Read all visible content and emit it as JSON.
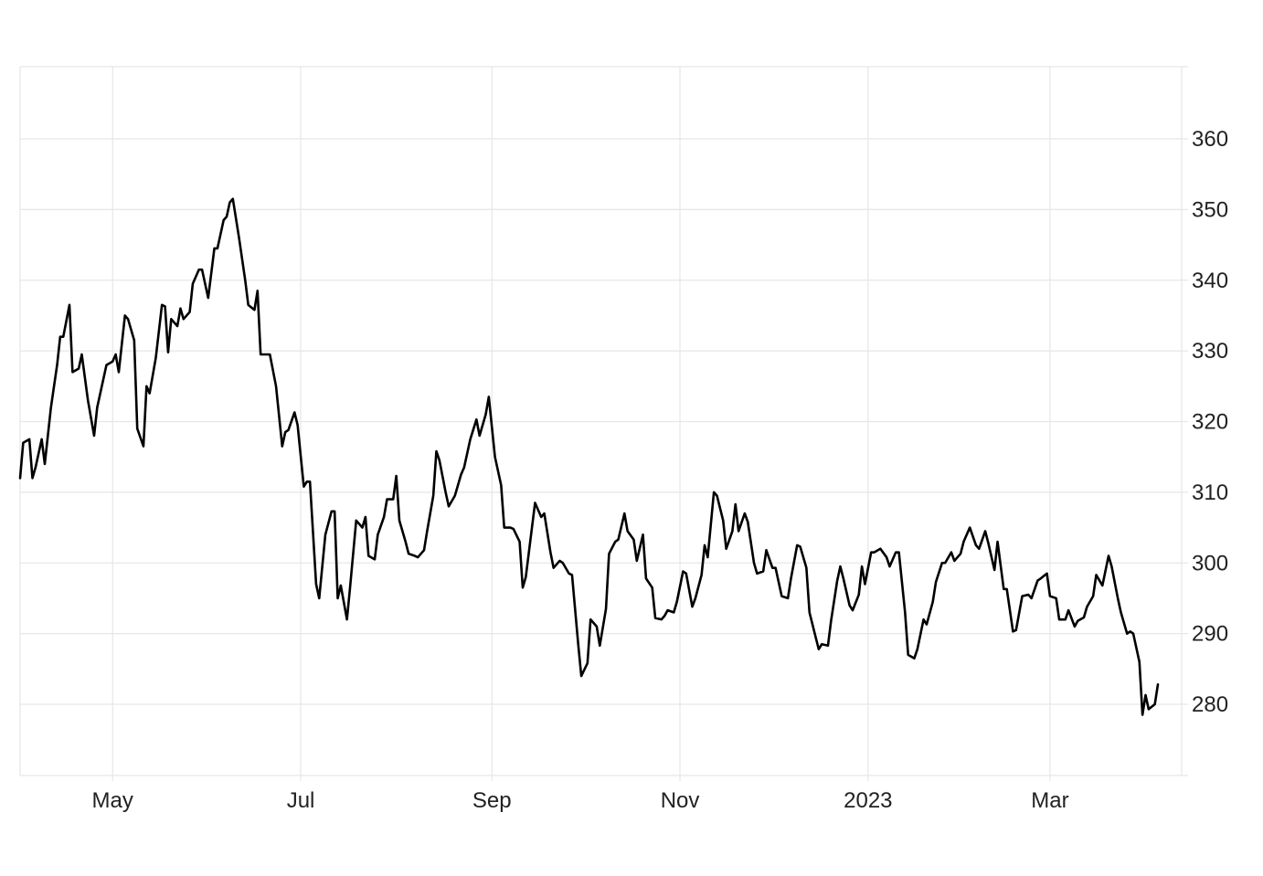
{
  "chart_data": {
    "type": "line",
    "title": "",
    "xlabel": "",
    "ylabel": "",
    "x_ticks": [
      {
        "label": "May",
        "date": "2022-05-01"
      },
      {
        "label": "Jul",
        "date": "2022-07-01"
      },
      {
        "label": "Sep",
        "date": "2022-09-01"
      },
      {
        "label": "Nov",
        "date": "2022-11-01"
      },
      {
        "label": "2023",
        "date": "2023-01-01"
      },
      {
        "label": "Mar",
        "date": "2023-03-01"
      }
    ],
    "y_ticks": [
      280,
      290,
      300,
      310,
      320,
      330,
      340,
      350,
      360
    ],
    "ylim": [
      270,
      370
    ],
    "xlim": [
      "2022-04-01",
      "2023-04-05"
    ],
    "y_axis_side": "right",
    "grid": true,
    "line_color": "#000000",
    "grid_color": "#e6e6e6",
    "series": [
      {
        "values": [
          [
            "2022-04-01",
            312
          ],
          [
            "2022-04-02",
            317
          ],
          [
            "2022-04-04",
            317.5
          ],
          [
            "2022-04-05",
            312
          ],
          [
            "2022-04-06",
            313.5
          ],
          [
            "2022-04-08",
            317.5
          ],
          [
            "2022-04-09",
            314
          ],
          [
            "2022-04-11",
            322
          ],
          [
            "2022-04-13",
            328
          ],
          [
            "2022-04-14",
            332
          ],
          [
            "2022-04-15",
            332
          ],
          [
            "2022-04-17",
            336.5
          ],
          [
            "2022-04-18",
            327
          ],
          [
            "2022-04-20",
            327.5
          ],
          [
            "2022-04-21",
            329.5
          ],
          [
            "2022-04-23",
            323
          ],
          [
            "2022-04-25",
            318
          ],
          [
            "2022-04-26",
            322
          ],
          [
            "2022-04-28",
            326
          ],
          [
            "2022-04-29",
            328
          ],
          [
            "2022-05-01",
            328.5
          ],
          [
            "2022-05-02",
            329.5
          ],
          [
            "2022-05-03",
            327
          ],
          [
            "2022-05-05",
            335
          ],
          [
            "2022-05-06",
            334.5
          ],
          [
            "2022-05-08",
            331.5
          ],
          [
            "2022-05-09",
            319
          ],
          [
            "2022-05-11",
            316.5
          ],
          [
            "2022-05-12",
            325
          ],
          [
            "2022-05-13",
            324
          ],
          [
            "2022-05-15",
            329
          ],
          [
            "2022-05-17",
            336.5
          ],
          [
            "2022-05-18",
            336.3
          ],
          [
            "2022-05-19",
            329.8
          ],
          [
            "2022-05-20",
            334.5
          ],
          [
            "2022-05-22",
            333.5
          ],
          [
            "2022-05-23",
            336
          ],
          [
            "2022-05-24",
            334.5
          ],
          [
            "2022-05-26",
            335.5
          ],
          [
            "2022-05-27",
            339.5
          ],
          [
            "2022-05-29",
            341.5
          ],
          [
            "2022-05-30",
            341.5
          ],
          [
            "2022-06-01",
            337.5
          ],
          [
            "2022-06-02",
            341
          ],
          [
            "2022-06-03",
            344.5
          ],
          [
            "2022-06-04",
            344.5
          ],
          [
            "2022-06-06",
            348.5
          ],
          [
            "2022-06-07",
            349
          ],
          [
            "2022-06-08",
            351
          ],
          [
            "2022-06-09",
            351.5
          ],
          [
            "2022-06-11",
            346
          ],
          [
            "2022-06-13",
            340
          ],
          [
            "2022-06-14",
            336.5
          ],
          [
            "2022-06-16",
            335.8
          ],
          [
            "2022-06-17",
            338.5
          ],
          [
            "2022-06-18",
            329.5
          ],
          [
            "2022-06-20",
            329.5
          ],
          [
            "2022-06-21",
            329.5
          ],
          [
            "2022-06-23",
            325
          ],
          [
            "2022-06-25",
            316.5
          ],
          [
            "2022-06-26",
            318.5
          ],
          [
            "2022-06-27",
            318.8
          ],
          [
            "2022-06-29",
            321.3
          ],
          [
            "2022-06-30",
            319.5
          ],
          [
            "2022-07-02",
            310.8
          ],
          [
            "2022-07-03",
            311.5
          ],
          [
            "2022-07-04",
            311.5
          ],
          [
            "2022-07-06",
            297
          ],
          [
            "2022-07-07",
            295
          ],
          [
            "2022-07-09",
            304
          ],
          [
            "2022-07-11",
            307.3
          ],
          [
            "2022-07-12",
            307.3
          ],
          [
            "2022-07-13",
            295
          ],
          [
            "2022-07-14",
            296.8
          ],
          [
            "2022-07-16",
            292
          ],
          [
            "2022-07-17",
            296.5
          ],
          [
            "2022-07-19",
            306
          ],
          [
            "2022-07-21",
            305
          ],
          [
            "2022-07-22",
            306.5
          ],
          [
            "2022-07-23",
            301
          ],
          [
            "2022-07-25",
            300.5
          ],
          [
            "2022-07-26",
            304
          ],
          [
            "2022-07-28",
            306.5
          ],
          [
            "2022-07-29",
            309
          ],
          [
            "2022-07-31",
            309
          ],
          [
            "2022-08-01",
            312.3
          ],
          [
            "2022-08-02",
            306
          ],
          [
            "2022-08-04",
            303
          ],
          [
            "2022-08-05",
            301.3
          ],
          [
            "2022-08-07",
            301
          ],
          [
            "2022-08-08",
            300.8
          ],
          [
            "2022-08-10",
            301.8
          ],
          [
            "2022-08-11",
            304.5
          ],
          [
            "2022-08-13",
            309.5
          ],
          [
            "2022-08-14",
            315.8
          ],
          [
            "2022-08-15",
            314.5
          ],
          [
            "2022-08-17",
            310
          ],
          [
            "2022-08-18",
            308
          ],
          [
            "2022-08-20",
            309.5
          ],
          [
            "2022-08-21",
            311
          ],
          [
            "2022-08-22",
            312.5
          ],
          [
            "2022-08-23",
            313.5
          ],
          [
            "2022-08-25",
            317.5
          ],
          [
            "2022-08-27",
            320.3
          ],
          [
            "2022-08-28",
            318
          ],
          [
            "2022-08-30",
            321
          ],
          [
            "2022-08-31",
            323.5
          ],
          [
            "2022-09-02",
            315
          ],
          [
            "2022-09-04",
            311
          ],
          [
            "2022-09-05",
            305
          ],
          [
            "2022-09-07",
            305
          ],
          [
            "2022-09-08",
            304.8
          ],
          [
            "2022-09-10",
            303
          ],
          [
            "2022-09-11",
            296.5
          ],
          [
            "2022-09-12",
            298
          ],
          [
            "2022-09-14",
            305
          ],
          [
            "2022-09-15",
            308.5
          ],
          [
            "2022-09-17",
            306.5
          ],
          [
            "2022-09-18",
            307
          ],
          [
            "2022-09-20",
            301.5
          ],
          [
            "2022-09-21",
            299.3
          ],
          [
            "2022-09-23",
            300.3
          ],
          [
            "2022-09-24",
            300
          ],
          [
            "2022-09-26",
            298.5
          ],
          [
            "2022-09-27",
            298.3
          ],
          [
            "2022-09-29",
            288.5
          ],
          [
            "2022-09-30",
            284
          ],
          [
            "2022-10-02",
            285.8
          ],
          [
            "2022-10-03",
            292
          ],
          [
            "2022-10-05",
            291
          ],
          [
            "2022-10-06",
            288.3
          ],
          [
            "2022-10-08",
            293.5
          ],
          [
            "2022-10-09",
            301.3
          ],
          [
            "2022-10-11",
            303
          ],
          [
            "2022-10-12",
            303.3
          ],
          [
            "2022-10-14",
            307
          ],
          [
            "2022-10-15",
            304.5
          ],
          [
            "2022-10-17",
            303.3
          ],
          [
            "2022-10-18",
            300.3
          ],
          [
            "2022-10-20",
            304
          ],
          [
            "2022-10-21",
            297.8
          ],
          [
            "2022-10-23",
            296.5
          ],
          [
            "2022-10-24",
            292.2
          ],
          [
            "2022-10-26",
            292
          ],
          [
            "2022-10-27",
            292.5
          ],
          [
            "2022-10-28",
            293.3
          ],
          [
            "2022-10-30",
            293
          ],
          [
            "2022-10-31",
            294.5
          ],
          [
            "2022-11-02",
            298.8
          ],
          [
            "2022-11-03",
            298.5
          ],
          [
            "2022-11-05",
            293.8
          ],
          [
            "2022-11-06",
            295
          ],
          [
            "2022-11-08",
            298.3
          ],
          [
            "2022-11-09",
            302.5
          ],
          [
            "2022-11-10",
            300.8
          ],
          [
            "2022-11-12",
            310
          ],
          [
            "2022-11-13",
            309.5
          ],
          [
            "2022-11-15",
            306
          ],
          [
            "2022-11-16",
            302
          ],
          [
            "2022-11-18",
            304.5
          ],
          [
            "2022-11-19",
            308.3
          ],
          [
            "2022-11-20",
            304.5
          ],
          [
            "2022-11-22",
            307
          ],
          [
            "2022-11-23",
            305.8
          ],
          [
            "2022-11-25",
            300
          ],
          [
            "2022-11-26",
            298.5
          ],
          [
            "2022-11-28",
            298.8
          ],
          [
            "2022-11-29",
            301.8
          ],
          [
            "2022-12-01",
            299.3
          ],
          [
            "2022-12-02",
            299.3
          ],
          [
            "2022-12-04",
            295.3
          ],
          [
            "2022-12-06",
            295
          ],
          [
            "2022-12-07",
            297.8
          ],
          [
            "2022-12-09",
            302.5
          ],
          [
            "2022-12-10",
            302.3
          ],
          [
            "2022-12-12",
            299.3
          ],
          [
            "2022-12-13",
            293
          ],
          [
            "2022-12-15",
            289.5
          ],
          [
            "2022-12-16",
            287.8
          ],
          [
            "2022-12-17",
            288.5
          ],
          [
            "2022-12-19",
            288.3
          ],
          [
            "2022-12-20",
            291.8
          ],
          [
            "2022-12-22",
            297.5
          ],
          [
            "2022-12-23",
            299.5
          ],
          [
            "2022-12-24",
            297.8
          ],
          [
            "2022-12-26",
            294
          ],
          [
            "2022-12-27",
            293.3
          ],
          [
            "2022-12-29",
            295.5
          ],
          [
            "2022-12-30",
            299.5
          ],
          [
            "2022-12-31",
            297
          ],
          [
            "2023-01-02",
            301.5
          ],
          [
            "2023-01-03",
            301.5
          ],
          [
            "2023-01-05",
            302
          ],
          [
            "2023-01-07",
            300.8
          ],
          [
            "2023-01-08",
            299.5
          ],
          [
            "2023-01-10",
            301.5
          ],
          [
            "2023-01-11",
            301.5
          ],
          [
            "2023-01-13",
            293
          ],
          [
            "2023-01-14",
            287
          ],
          [
            "2023-01-16",
            286.5
          ],
          [
            "2023-01-17",
            287.8
          ],
          [
            "2023-01-19",
            292
          ],
          [
            "2023-01-20",
            291.3
          ],
          [
            "2023-01-22",
            294.5
          ],
          [
            "2023-01-23",
            297.3
          ],
          [
            "2023-01-25",
            300
          ],
          [
            "2023-01-26",
            300
          ],
          [
            "2023-01-28",
            301.5
          ],
          [
            "2023-01-29",
            300.3
          ],
          [
            "2023-01-31",
            301.3
          ],
          [
            "2023-02-01",
            303
          ],
          [
            "2023-02-03",
            305
          ],
          [
            "2023-02-05",
            302.5
          ],
          [
            "2023-02-06",
            302
          ],
          [
            "2023-02-08",
            304.5
          ],
          [
            "2023-02-09",
            302.8
          ],
          [
            "2023-02-11",
            299
          ],
          [
            "2023-02-12",
            303
          ],
          [
            "2023-02-14",
            296.3
          ],
          [
            "2023-02-15",
            296.3
          ],
          [
            "2023-02-17",
            290.3
          ],
          [
            "2023-02-18",
            290.5
          ],
          [
            "2023-02-20",
            295.3
          ],
          [
            "2023-02-22",
            295.5
          ],
          [
            "2023-02-23",
            295
          ],
          [
            "2023-02-25",
            297.5
          ],
          [
            "2023-02-26",
            297.8
          ],
          [
            "2023-02-28",
            298.5
          ],
          [
            "2023-03-01",
            295.3
          ],
          [
            "2023-03-03",
            295
          ],
          [
            "2023-03-04",
            292
          ],
          [
            "2023-03-06",
            292
          ],
          [
            "2023-03-07",
            293.3
          ],
          [
            "2023-03-09",
            291
          ],
          [
            "2023-03-10",
            291.8
          ],
          [
            "2023-03-12",
            292.3
          ],
          [
            "2023-03-13",
            293.8
          ],
          [
            "2023-03-15",
            295.3
          ],
          [
            "2023-03-16",
            298.3
          ],
          [
            "2023-03-18",
            296.8
          ],
          [
            "2023-03-20",
            301
          ],
          [
            "2023-03-21",
            299.5
          ],
          [
            "2023-03-23",
            295
          ],
          [
            "2023-03-24",
            293
          ],
          [
            "2023-03-26",
            290
          ],
          [
            "2023-03-27",
            290.3
          ],
          [
            "2023-03-28",
            290
          ],
          [
            "2023-03-30",
            286
          ],
          [
            "2023-03-31",
            278.5
          ],
          [
            "2023-04-01",
            281.3
          ],
          [
            "2023-04-02",
            279.3
          ],
          [
            "2023-04-04",
            280
          ],
          [
            "2023-04-05",
            282.8
          ]
        ]
      }
    ]
  }
}
